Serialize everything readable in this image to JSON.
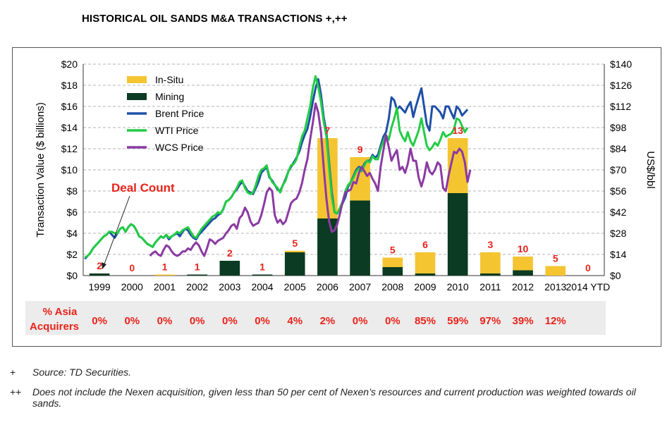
{
  "title": "HISTORICAL OIL SANDS M&A TRANSACTIONS +,++",
  "chart_data": {
    "type": "bar",
    "categories": [
      "1999",
      "2000",
      "2001",
      "2002",
      "2003",
      "2004",
      "2005",
      "2006",
      "2007",
      "2008",
      "2009",
      "2010",
      "2011",
      "2012",
      "2013",
      "2014 YTD"
    ],
    "series": [
      {
        "name": "In-Situ",
        "color": "#f5c431",
        "values": [
          0,
          0,
          0.1,
          0,
          0,
          0,
          0.15,
          7.6,
          4.1,
          0.9,
          2.0,
          5.2,
          2.0,
          1.3,
          0.9,
          0
        ]
      },
      {
        "name": "Mining",
        "color": "#0b3b22",
        "values": [
          0.2,
          0,
          0,
          0.1,
          1.4,
          0.1,
          2.2,
          5.4,
          7.1,
          0.8,
          0.2,
          7.8,
          0.2,
          0.5,
          0,
          0
        ]
      }
    ],
    "deal_counts": [
      "2",
      "0",
      "1",
      "1",
      "2",
      "1",
      "5",
      "7",
      "9",
      "5",
      "6",
      "13",
      "3",
      "10",
      "5",
      "0"
    ],
    "asia_label_line1": "% Asia",
    "asia_label_line2": "Acquirers",
    "asia_acquirers": [
      "0%",
      "0%",
      "0%",
      "0%",
      "0%",
      "0%",
      "4%",
      "2%",
      "0%",
      "0%",
      "85%",
      "59%",
      "97%",
      "39%",
      "12%",
      ""
    ],
    "deal_count_annotation": "Deal Count",
    "ylabel": "Transaction Value ($ billions)",
    "y2label": "US$/bbl",
    "ylim": [
      0,
      20
    ],
    "y_ticks": [
      "$0",
      "$2",
      "$4",
      "$6",
      "$8",
      "$10",
      "$12",
      "$14",
      "$16",
      "$18",
      "$20"
    ],
    "y2lim": [
      0,
      140
    ],
    "y2_ticks": [
      "$0",
      "$14",
      "$28",
      "$42",
      "$56",
      "$70",
      "$84",
      "$98",
      "$112",
      "$126",
      "$140"
    ],
    "legend": [
      "In-Situ",
      "Mining",
      "Brent Price",
      "WTI Price",
      "WCS Price"
    ],
    "price_series": [
      {
        "name": "Brent Price",
        "color": "#1f4fa8",
        "start": 1999.0,
        "values": [
          11,
          13,
          15,
          18,
          20,
          22,
          24,
          26,
          27,
          29,
          27,
          25,
          28,
          31,
          32,
          29,
          32,
          34,
          33,
          30,
          26,
          25,
          23,
          21,
          20,
          19,
          22,
          24,
          26,
          25,
          27,
          24,
          26,
          27,
          28,
          26,
          29,
          31,
          30,
          27,
          25,
          24,
          27,
          29,
          31,
          33,
          35,
          37,
          38,
          40,
          41,
          44,
          49,
          50,
          52,
          55,
          57,
          60,
          62,
          59,
          56,
          55,
          54,
          58,
          62,
          68,
          70,
          72,
          65,
          63,
          60,
          57,
          56,
          60,
          64,
          69,
          72,
          75,
          78,
          82,
          88,
          93,
          97,
          105,
          115,
          124,
          130,
          120,
          105,
          95,
          75,
          55,
          42,
          41,
          44,
          48,
          52,
          59,
          62,
          66,
          70,
          72,
          70,
          74,
          76,
          76,
          80,
          78,
          80,
          86,
          92,
          95,
          104,
          118,
          116,
          110,
          112,
          110,
          108,
          112,
          115,
          105,
          112,
          118,
          124,
          112,
          100,
          96,
          112,
          112,
          110,
          108,
          104,
          112,
          112,
          108,
          104,
          112,
          110,
          106,
          108,
          110
        ]
      },
      {
        "name": "WTI Price",
        "color": "#22cc44",
        "start": 1999.0,
        "values": [
          12,
          13,
          15,
          18,
          20,
          22,
          24,
          26,
          27,
          29,
          29,
          28,
          28,
          31,
          32,
          29,
          32,
          34,
          33,
          30,
          26,
          25,
          23,
          21,
          20,
          19,
          22,
          24,
          26,
          25,
          27,
          25,
          26,
          27,
          29,
          28,
          30,
          31,
          32,
          29,
          26,
          25,
          28,
          31,
          33,
          35,
          37,
          39,
          40,
          42,
          41,
          44,
          49,
          50,
          52,
          55,
          58,
          62,
          63,
          58,
          55,
          54,
          55,
          60,
          66,
          70,
          71,
          73,
          66,
          62,
          60,
          58,
          55,
          60,
          63,
          69,
          73,
          74,
          77,
          85,
          92,
          96,
          104,
          112,
          124,
          132,
          125,
          115,
          102,
          92,
          72,
          52,
          42,
          41,
          45,
          49,
          56,
          60,
          62,
          65,
          69,
          71,
          69,
          73,
          76,
          75,
          79,
          77,
          77,
          84,
          89,
          93,
          90,
          98,
          104,
          111,
          96,
          92,
          89,
          95,
          89,
          86,
          91,
          96,
          104,
          95,
          86,
          83,
          85,
          88,
          86,
          90,
          95,
          92,
          93,
          94,
          97,
          104,
          103,
          99,
          95,
          98
        ]
      },
      {
        "name": "WCS Price",
        "start": 2001.0,
        "color": "#8b3aa3",
        "values": [
          13,
          15,
          16,
          14,
          13,
          17,
          20,
          19,
          16,
          14,
          13,
          14,
          16,
          16,
          18,
          17,
          20,
          22,
          20,
          16,
          13,
          18,
          24,
          23,
          21,
          23,
          24,
          25,
          28,
          30,
          33,
          34,
          31,
          38,
          40,
          45,
          42,
          36,
          33,
          34,
          35,
          40,
          47,
          55,
          58,
          56,
          40,
          35,
          37,
          34,
          36,
          42,
          48,
          50,
          51,
          55,
          61,
          70,
          77,
          90,
          101,
          114,
          108,
          95,
          72,
          51,
          36,
          29,
          30,
          34,
          41,
          49,
          55,
          56,
          57,
          62,
          61,
          68,
          72,
          69,
          66,
          68,
          64,
          61,
          56,
          72,
          83,
          93,
          85,
          76,
          80,
          83,
          70,
          72,
          68,
          74,
          84,
          76,
          76,
          65,
          59,
          65,
          75,
          69,
          67,
          70,
          75,
          73,
          58,
          56,
          66,
          74,
          82,
          81,
          84,
          82,
          75,
          62,
          70
        ]
      }
    ]
  },
  "footnotes": [
    {
      "mark": "+",
      "text": "Source: TD Securities."
    },
    {
      "mark": "++",
      "text": "Does not include the Nexen acquisition, given less than 50 per cent of Nexen’s resources and current production was weighted towards oil sands."
    }
  ]
}
